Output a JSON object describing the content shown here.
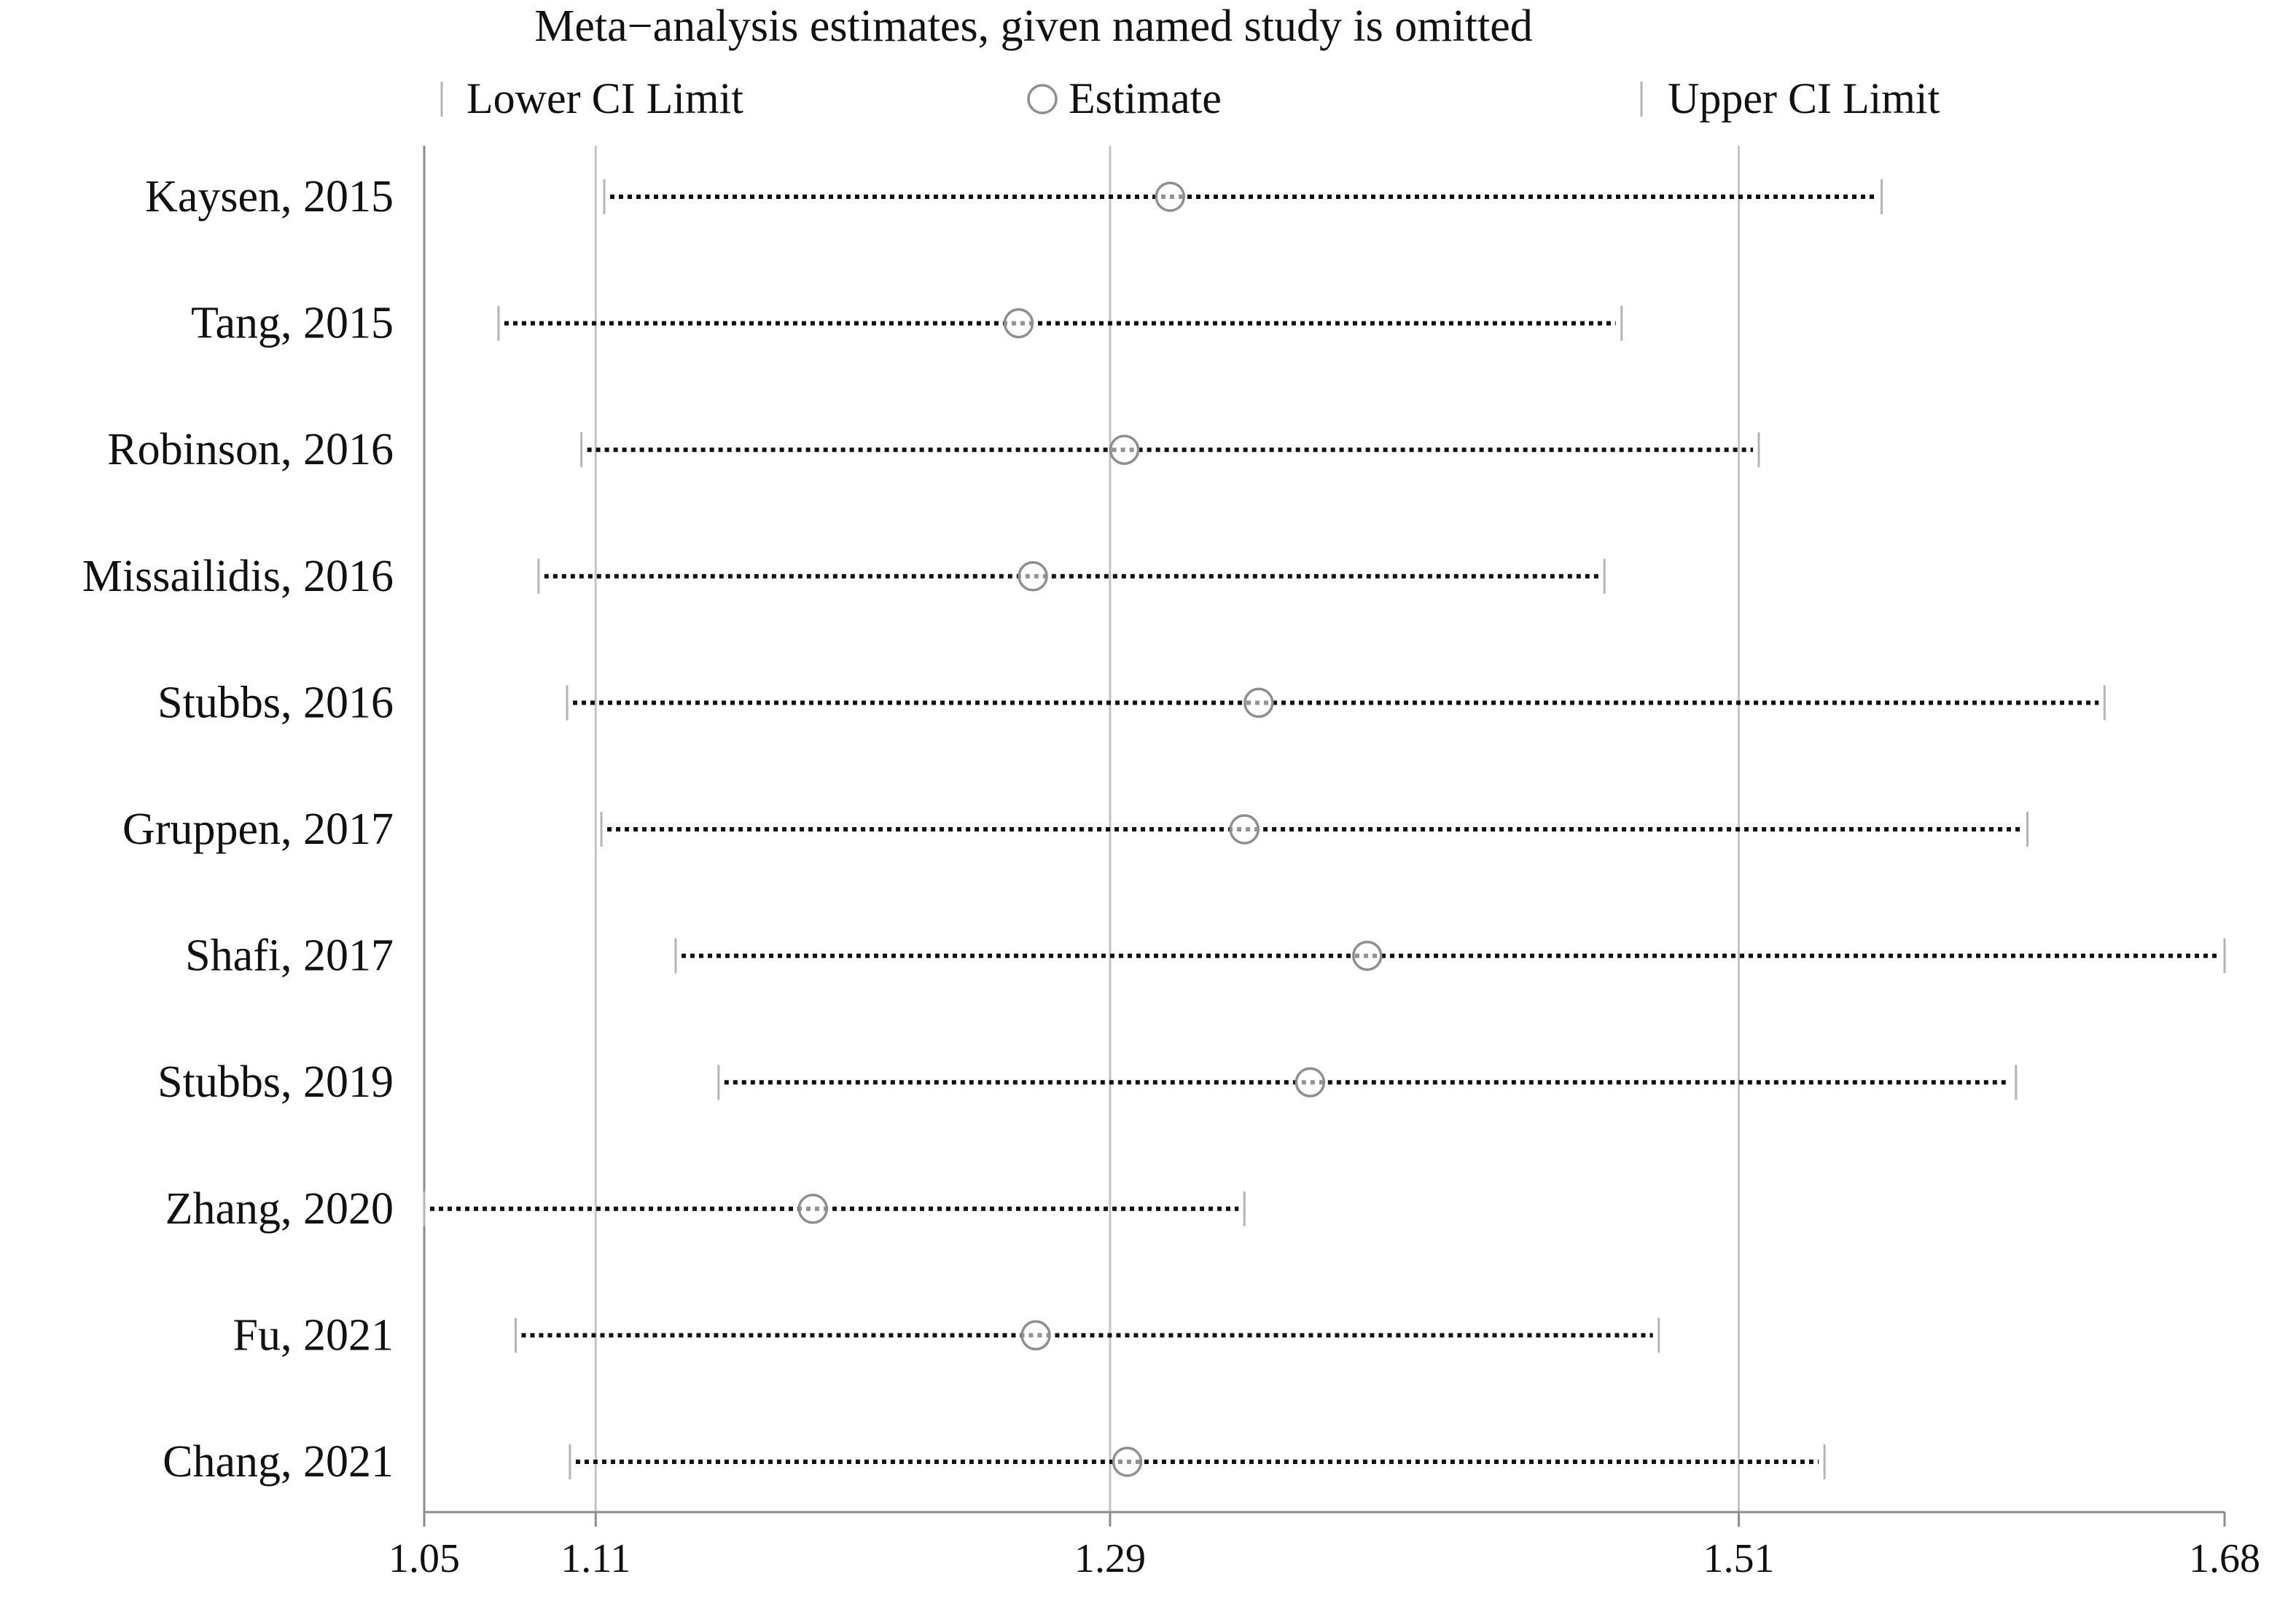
{
  "chart_data": {
    "type": "forest",
    "title": "Meta−analysis estimates, given named study is omitted",
    "legend": {
      "lower": "Lower CI Limit",
      "estimate": "Estimate",
      "upper": "Upper CI Limit",
      "placement": "top"
    },
    "xlim": [
      1.05,
      1.68
    ],
    "x_ticks": [
      1.05,
      1.11,
      1.29,
      1.51,
      1.68
    ],
    "x_tick_labels": [
      "1.05",
      "1.11",
      "1.29",
      "1.51",
      "1.68"
    ],
    "reference_lines": [
      1.11,
      1.29,
      1.51
    ],
    "studies": [
      {
        "label": "Kaysen, 2015",
        "lower": 1.113,
        "estimate": 1.311,
        "upper": 1.56
      },
      {
        "label": "Tang, 2015",
        "lower": 1.076,
        "estimate": 1.258,
        "upper": 1.469
      },
      {
        "label": "Robinson, 2016",
        "lower": 1.105,
        "estimate": 1.295,
        "upper": 1.517
      },
      {
        "label": "Missailidis, 2016",
        "lower": 1.09,
        "estimate": 1.263,
        "upper": 1.463
      },
      {
        "label": "Stubbs, 2016",
        "lower": 1.1,
        "estimate": 1.342,
        "upper": 1.638
      },
      {
        "label": "Gruppen, 2017",
        "lower": 1.112,
        "estimate": 1.337,
        "upper": 1.611
      },
      {
        "label": "Shafi, 2017",
        "lower": 1.138,
        "estimate": 1.38,
        "upper": 1.68
      },
      {
        "label": "Stubbs, 2019",
        "lower": 1.153,
        "estimate": 1.36,
        "upper": 1.607
      },
      {
        "label": "Zhang, 2020",
        "lower": 1.05,
        "estimate": 1.186,
        "upper": 1.337
      },
      {
        "label": "Fu, 2021",
        "lower": 1.082,
        "estimate": 1.264,
        "upper": 1.482
      },
      {
        "label": "Chang, 2021",
        "lower": 1.101,
        "estimate": 1.296,
        "upper": 1.54
      }
    ]
  },
  "colors": {
    "axis": "#8c8c8c",
    "gridline": "#c4c4c4",
    "ci_line": "#111111",
    "estimate_marker": "#8f8f8f",
    "text": "#111111"
  }
}
